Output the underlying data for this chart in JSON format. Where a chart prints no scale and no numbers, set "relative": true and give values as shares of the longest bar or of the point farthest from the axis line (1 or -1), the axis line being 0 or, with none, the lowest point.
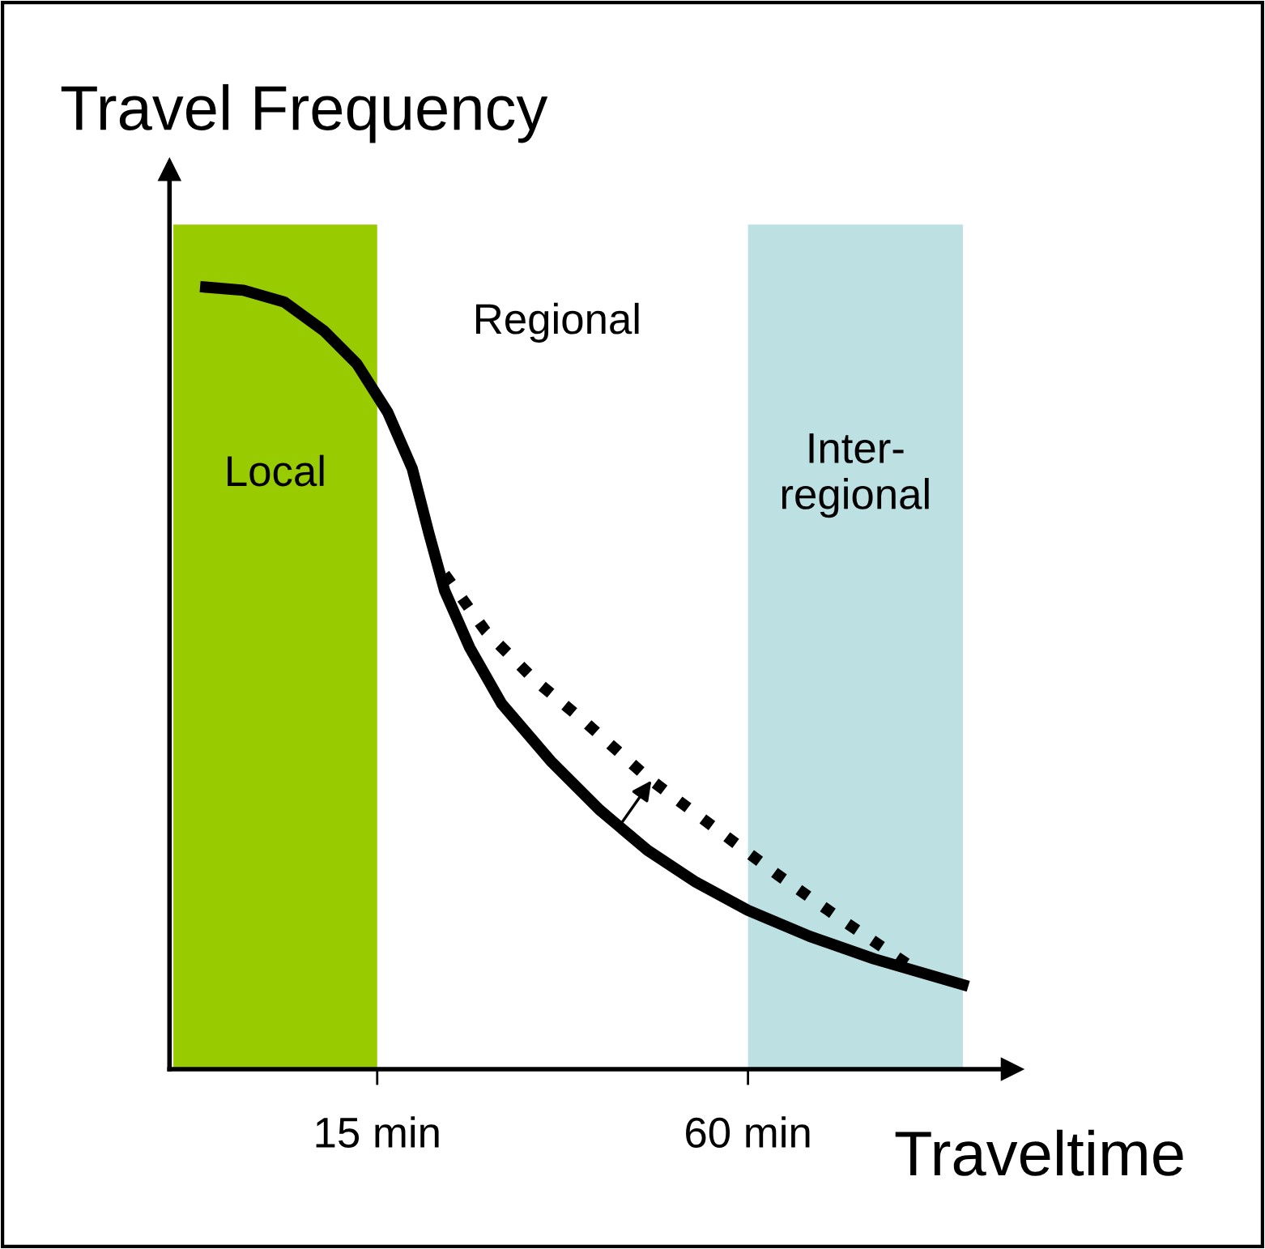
{
  "chart_data": {
    "type": "line",
    "relative": true,
    "ylabel": "Travel Frequency",
    "xlabel": "Traveltime",
    "log": "x",
    "xlim": [
      6.9,
      161
    ],
    "xticks": [
      {
        "value": 15,
        "label": "15 min"
      },
      {
        "value": 60,
        "label": "60 min"
      }
    ],
    "bands": [
      {
        "axis": "x",
        "from": 7.0,
        "to": 15,
        "label": "Local",
        "color": "#99cc00"
      },
      {
        "axis": "x",
        "from": 60,
        "to": 134,
        "label": "Inter-\nregional",
        "color": "#bde0e3"
      }
    ],
    "annotations": [
      "Regional"
    ],
    "grid": false,
    "series": [
      {
        "color": "#000000",
        "line_style": "solid",
        "x": [
          7.9,
          9.1,
          10.6,
          12.3,
          13.9,
          15.6,
          17.1,
          18.2,
          19.3,
          21.2,
          23.9,
          28.7,
          34.4,
          41.2,
          49.4,
          60,
          75.5,
          96.2,
          134
        ],
        "values": [
          1,
          0.996,
          0.981,
          0.944,
          0.902,
          0.84,
          0.768,
          0.685,
          0.612,
          0.539,
          0.467,
          0.394,
          0.332,
          0.28,
          0.239,
          0.203,
          0.17,
          0.141,
          0.108
        ]
      },
      {
        "color": "#000000",
        "line_style": "dotted",
        "x": [
          19.3,
          22.5,
          27.0,
          32.4,
          41.2,
          52.5,
          66.9,
          85.2,
          108.6
        ],
        "values": [
          0.633,
          0.56,
          0.498,
          0.446,
          0.373,
          0.311,
          0.249,
          0.191,
          0.135
        ]
      }
    ]
  }
}
